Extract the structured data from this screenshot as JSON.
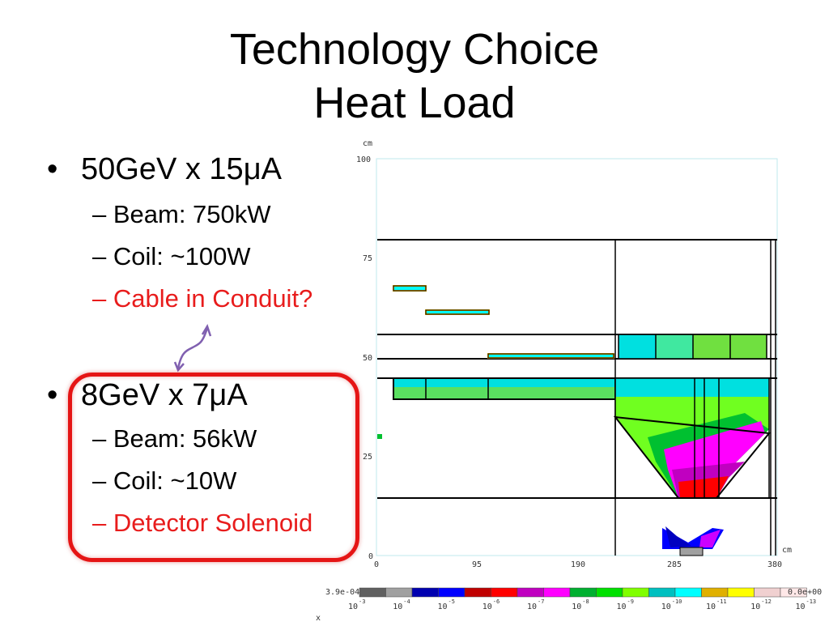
{
  "slide": {
    "title_line1": "Technology Choice",
    "title_line2": "Heat Load"
  },
  "bullets": [
    {
      "text": "50GeV x 15μA",
      "subitems": [
        {
          "text": "– Beam: 750kW",
          "color": "#000000"
        },
        {
          "text": "– Coil: ~100W",
          "color": "#000000"
        },
        {
          "text": "– Cable in Conduit?",
          "color": "#e81c1c"
        }
      ]
    },
    {
      "text": "8GeV x 7μA",
      "subitems": [
        {
          "text": "– Beam: 56kW",
          "color": "#000000"
        },
        {
          "text": "– Coil: ~10W",
          "color": "#000000"
        },
        {
          "text": "– Detector Solenoid",
          "color": "#e81c1c"
        }
      ]
    }
  ],
  "bullet_symbol": "•",
  "plot": {
    "y_unit": "cm",
    "x_unit": "cm",
    "x_axis_letter": "x",
    "y_ticks": [
      "100",
      "75",
      "50",
      "25",
      "0"
    ],
    "x_ticks": [
      "0",
      "95",
      "190",
      "285",
      "380"
    ]
  },
  "colorbar": {
    "max_label": "3.9e-04",
    "min_label": "0.0e+00",
    "colors": [
      "#606060",
      "#a0a0a0",
      "#0000b0",
      "#0000ff",
      "#c00000",
      "#ff0000",
      "#c000c0",
      "#ff00ff",
      "#00b030",
      "#00e000",
      "#80ff00",
      "#00c0c0",
      "#00ffff",
      "#e0b000",
      "#ffff00",
      "#f0d0d0",
      "#ffe8e8"
    ],
    "ticks": [
      {
        "base": "10",
        "exp": "-3"
      },
      {
        "base": "10",
        "exp": "-4"
      },
      {
        "base": "10",
        "exp": "-5"
      },
      {
        "base": "10",
        "exp": "-6"
      },
      {
        "base": "10",
        "exp": "-7"
      },
      {
        "base": "10",
        "exp": "-8"
      },
      {
        "base": "10",
        "exp": "-9"
      },
      {
        "base": "10",
        "exp": "-10"
      },
      {
        "base": "10",
        "exp": "-11"
      },
      {
        "base": "10",
        "exp": "-12"
      },
      {
        "base": "10",
        "exp": "-13"
      }
    ]
  }
}
